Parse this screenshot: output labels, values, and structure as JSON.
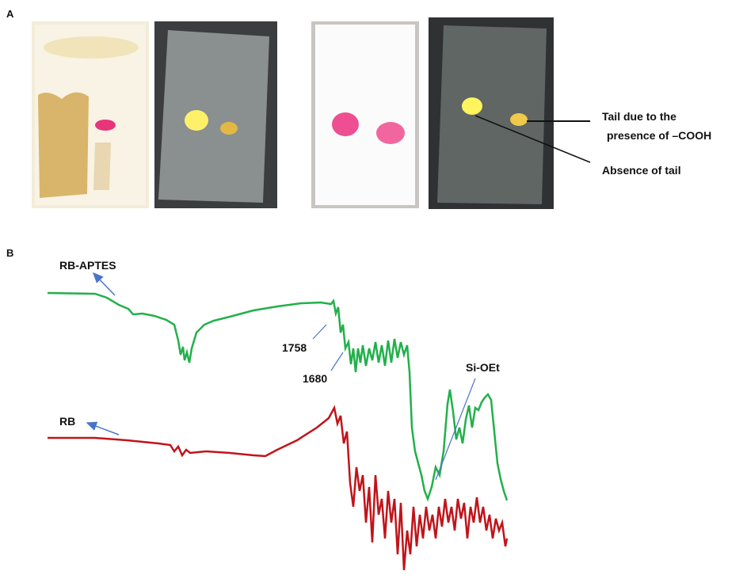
{
  "panel_a": {
    "label": "A",
    "annotations": [
      "Tail due to the",
      "presence of –COOH",
      "Absence of tail"
    ]
  },
  "panel_b": {
    "label": "B",
    "spectra": [
      "RB-APTES",
      "RB"
    ],
    "peaks": [
      "1758",
      "1680",
      "Si-OEt"
    ]
  }
}
